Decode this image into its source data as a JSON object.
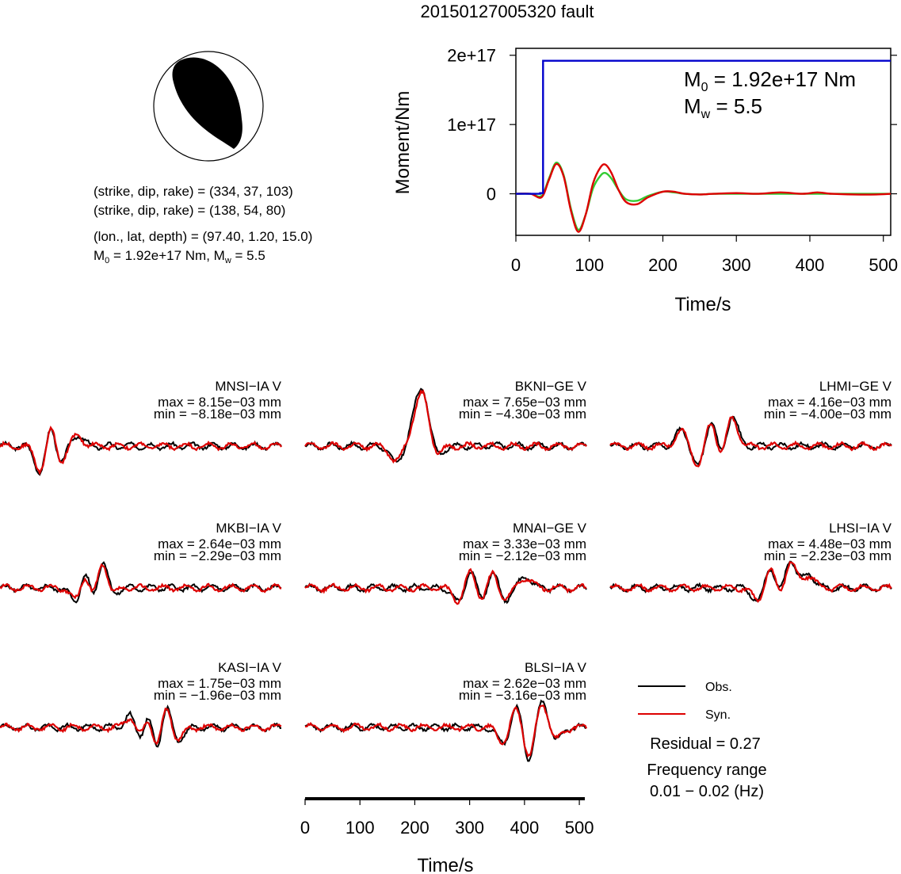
{
  "title": "20150127005320 fault",
  "beachball": {
    "lines": [
      "(strike, dip, rake) = (334, 37, 103)",
      "(strike, dip, rake) = (138, 54, 80)",
      "(lon., lat, depth) = (97.40, 1.20, 15.0)"
    ],
    "moment_line": {
      "m0_sym": "M",
      "m0_sub": "0",
      "m0_val": " = 1.92e+17 Nm, ",
      "mw_sym": "M",
      "mw_sub": "w",
      "mw_val": " = 5.5"
    }
  },
  "chart_data": [
    {
      "type": "line",
      "name": "moment-rate",
      "xlabel": "Time/s",
      "ylabel": "Moment/Nm",
      "xlim": [
        0,
        510
      ],
      "ylim": [
        -60000000000000000,
        210000000000000000
      ],
      "xticks": [
        0,
        100,
        200,
        300,
        400,
        500
      ],
      "yticks": [
        0,
        100000000000000000,
        200000000000000000
      ],
      "ytick_labels": [
        "0",
        "1e+17",
        "2e+17"
      ],
      "grid": false,
      "annotation": {
        "m0_sym": "M",
        "m0_sub": "0",
        "m0_val": " = 1.92e+17 Nm",
        "mw_sym": "M",
        "mw_sub": "w",
        "mw_val": " = 5.5"
      },
      "series": [
        {
          "color": "#0000cc",
          "kind": "step",
          "x": [
            0,
            33,
            33,
            37,
            37,
            510
          ],
          "y": [
            0,
            0,
            1000000000000000,
            1000000000000000,
            192000000000000000,
            192000000000000000
          ]
        },
        {
          "color": "#dd0000",
          "kind": "wave",
          "x": [
            0,
            20,
            35,
            45,
            55,
            65,
            75,
            85,
            95,
            105,
            115,
            122,
            130,
            140,
            150,
            165,
            180,
            200,
            215,
            230,
            250,
            270,
            300,
            330,
            360,
            390,
            410,
            430,
            460,
            490,
            510
          ],
          "y": [
            0,
            0,
            -5000000000000000,
            20000000000000000,
            43000000000000000,
            25000000000000000,
            -25000000000000000,
            -55000000000000000,
            -30000000000000000,
            15000000000000000,
            38000000000000000,
            42000000000000000,
            30000000000000000,
            5000000000000000,
            -12000000000000000,
            -15000000000000000,
            -5000000000000000,
            3000000000000000,
            3000000000000000,
            0,
            -1000000000000000,
            0,
            1000000000000000,
            0,
            2000000000000000,
            0,
            2000000000000000,
            0,
            -1000000000000000,
            -1000000000000000,
            0
          ]
        },
        {
          "color": "#33cc33",
          "kind": "wave",
          "x": [
            0,
            20,
            35,
            45,
            55,
            65,
            75,
            85,
            95,
            105,
            115,
            122,
            130,
            140,
            150,
            165,
            180,
            200,
            215,
            230,
            250,
            270,
            300,
            330,
            360,
            390,
            410,
            430,
            460,
            490,
            510
          ],
          "y": [
            0,
            0,
            -3000000000000000,
            22000000000000000,
            45000000000000000,
            27000000000000000,
            -22000000000000000,
            -52000000000000000,
            -30000000000000000,
            8000000000000000,
            26000000000000000,
            30000000000000000,
            22000000000000000,
            5000000000000000,
            -8000000000000000,
            -10000000000000000,
            -3000000000000000,
            3000000000000000,
            2000000000000000,
            0,
            -1000000000000000,
            0,
            0,
            0,
            0,
            0,
            0,
            0,
            0,
            0,
            0
          ]
        }
      ]
    },
    {
      "type": "line",
      "name": "waveform-traces",
      "xlabel": "Time/s",
      "xlim": [
        0,
        510
      ],
      "xticks": [
        0,
        100,
        200,
        300,
        400,
        500
      ],
      "grid": false,
      "legend": {
        "entries": [
          {
            "label": "Obs.",
            "color": "#000000"
          },
          {
            "label": "Syn.",
            "color": "#dd0000"
          }
        ],
        "position": "bottom-right"
      },
      "residual": "Residual = 0.27",
      "frequency_label": "Frequency range",
      "frequency_value": "0.01 − 0.02 (Hz)",
      "traces": [
        {
          "name": "MNSI−IA V",
          "max": "max = 8.15e−03 mm",
          "min": "min = −8.18e−03 mm",
          "seed": 3,
          "peaks": [
            [
              75,
              -0.55
            ],
            [
              95,
              0.75
            ],
            [
              105,
              -0.6
            ],
            [
              140,
              0.2
            ]
          ]
        },
        {
          "name": "BKNI−GE V",
          "max": "max = 7.65e−03 mm",
          "min": "min = −4.30e−03 mm",
          "seed": 7,
          "peaks": [
            [
              165,
              -0.3
            ],
            [
              200,
              0.45
            ],
            [
              215,
              0.85
            ],
            [
              240,
              -0.15
            ]
          ]
        },
        {
          "name": "LHMI−GE V",
          "max": "max = 4.16e−03 mm",
          "min": "min = −4.00e−03 mm",
          "seed": 11,
          "peaks": [
            [
              130,
              0.3
            ],
            [
              160,
              -0.4
            ],
            [
              185,
              0.6
            ],
            [
              200,
              -0.4
            ],
            [
              220,
              0.6
            ]
          ]
        },
        {
          "name": "MKBI−IA V",
          "max": "max = 2.64e−03 mm",
          "min": "min = −2.29e−03 mm",
          "seed": 5,
          "peaks": [
            [
              140,
              -0.35
            ],
            [
              155,
              0.5
            ],
            [
              170,
              -0.5
            ],
            [
              185,
              0.7
            ],
            [
              200,
              -0.2
            ]
          ]
        },
        {
          "name": "MNAI−GE V",
          "max": "max = 3.33e−03 mm",
          "min": "min = −2.12e−03 mm",
          "seed": 13,
          "peaks": [
            [
              280,
              -0.3
            ],
            [
              300,
              0.4
            ],
            [
              320,
              -0.3
            ],
            [
              340,
              0.35
            ],
            [
              360,
              -0.25
            ],
            [
              400,
              0.2
            ]
          ]
        },
        {
          "name": "LHSI−IA V",
          "max": "max = 4.48e−03 mm",
          "min": "min = −2.23e−03 mm",
          "seed": 17,
          "peaks": [
            [
              270,
              -0.3
            ],
            [
              290,
              0.45
            ],
            [
              310,
              -0.3
            ],
            [
              325,
              0.6
            ],
            [
              360,
              0.25
            ]
          ]
        },
        {
          "name": "KASI−IA V",
          "max": "max = 1.75e−03 mm",
          "min": "min = −1.96e−03 mm",
          "seed": 19,
          "peaks": [
            [
              240,
              0.3
            ],
            [
              255,
              -0.4
            ],
            [
              270,
              0.5
            ],
            [
              285,
              -0.7
            ],
            [
              300,
              0.6
            ],
            [
              320,
              -0.3
            ]
          ]
        },
        {
          "name": "BLSI−IA V",
          "max": "max = 2.62e−03 mm",
          "min": "min = −3.16e−03 mm",
          "seed": 23,
          "peaks": [
            [
              360,
              -0.3
            ],
            [
              385,
              0.45
            ],
            [
              405,
              -0.65
            ],
            [
              430,
              0.5
            ],
            [
              455,
              -0.25
            ]
          ]
        }
      ]
    }
  ]
}
